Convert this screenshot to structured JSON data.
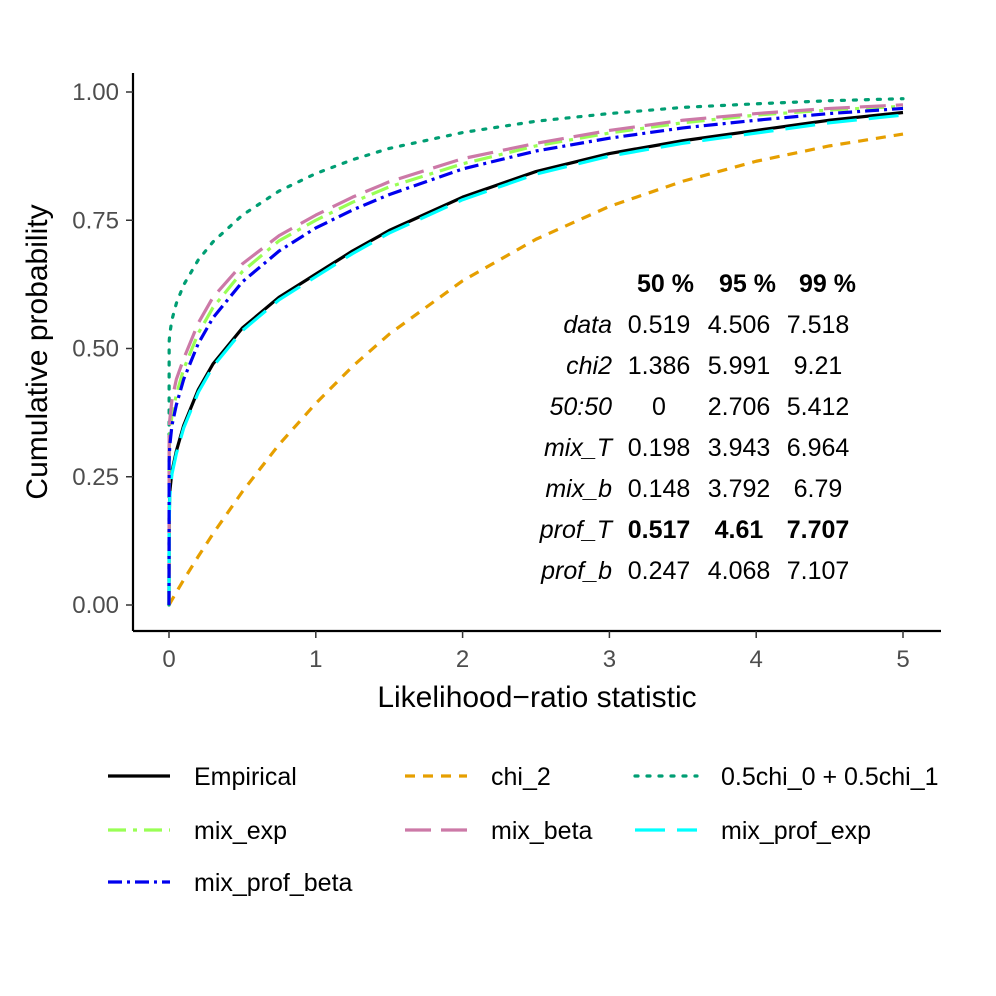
{
  "chart_data": {
    "type": "line",
    "xlabel": "Likelihood−ratio statistic",
    "ylabel": "Cumulative probability",
    "xlim": [
      -0.25,
      5.25
    ],
    "ylim": [
      -0.05,
      1.04
    ],
    "x_ticks": [
      0,
      1,
      2,
      3,
      4,
      5
    ],
    "y_ticks": [
      0.0,
      0.25,
      0.5,
      0.75,
      1.0
    ],
    "x_tick_labels": [
      "0",
      "1",
      "2",
      "3",
      "4",
      "5"
    ],
    "y_tick_labels": [
      "0.00",
      "0.25",
      "0.50",
      "0.75",
      "1.00"
    ],
    "grid": false,
    "legend_position": "bottom",
    "x": [
      0,
      0.001,
      0.005,
      0.02,
      0.05,
      0.1,
      0.2,
      0.3,
      0.5,
      0.75,
      1,
      1.25,
      1.5,
      2,
      2.5,
      3,
      3.5,
      4,
      4.5,
      5
    ],
    "series": [
      {
        "name": "Empirical",
        "color": "#000000",
        "dash": "solid",
        "values": [
          0,
          0.16,
          0.22,
          0.26,
          0.3,
          0.35,
          0.42,
          0.47,
          0.54,
          0.6,
          0.645,
          0.69,
          0.73,
          0.795,
          0.845,
          0.88,
          0.905,
          0.925,
          0.945,
          0.96
        ]
      },
      {
        "name": "chi_2",
        "color": "#E69F00",
        "dash": "short",
        "values": [
          0,
          0.0005,
          0.0025,
          0.01,
          0.025,
          0.049,
          0.095,
          0.139,
          0.221,
          0.313,
          0.393,
          0.465,
          0.528,
          0.632,
          0.713,
          0.777,
          0.826,
          0.865,
          0.895,
          0.918
        ]
      },
      {
        "name": "0.5chi_0 + 0.5chi_1",
        "color": "#009E73",
        "dash": "dot",
        "values": [
          0,
          0.513,
          0.528,
          0.556,
          0.588,
          0.624,
          0.673,
          0.708,
          0.76,
          0.807,
          0.841,
          0.868,
          0.89,
          0.921,
          0.943,
          0.958,
          0.97,
          0.977,
          0.983,
          0.987
        ]
      },
      {
        "name": "mix_exp",
        "color": "#99FF55",
        "dash": "dashdot",
        "values": [
          0,
          0.3,
          0.33,
          0.37,
          0.41,
          0.46,
          0.53,
          0.58,
          0.65,
          0.71,
          0.75,
          0.785,
          0.815,
          0.86,
          0.895,
          0.92,
          0.94,
          0.955,
          0.965,
          0.972
        ]
      },
      {
        "name": "mix_beta",
        "color": "#CC79A7",
        "dash": "long",
        "values": [
          0,
          0.33,
          0.36,
          0.4,
          0.44,
          0.48,
          0.55,
          0.6,
          0.665,
          0.72,
          0.76,
          0.795,
          0.825,
          0.87,
          0.9,
          0.925,
          0.945,
          0.958,
          0.968,
          0.975
        ]
      },
      {
        "name": "mix_prof_exp",
        "color": "#00FFFF",
        "dash": "longer",
        "values": [
          0,
          0.15,
          0.21,
          0.255,
          0.295,
          0.345,
          0.415,
          0.465,
          0.535,
          0.595,
          0.64,
          0.685,
          0.725,
          0.79,
          0.84,
          0.875,
          0.9,
          0.92,
          0.94,
          0.955
        ]
      },
      {
        "name": "mix_prof_beta",
        "color": "#0000EE",
        "dash": "dashdot2",
        "values": [
          0,
          0.28,
          0.31,
          0.35,
          0.39,
          0.44,
          0.51,
          0.56,
          0.63,
          0.69,
          0.735,
          0.77,
          0.8,
          0.85,
          0.885,
          0.91,
          0.93,
          0.945,
          0.958,
          0.968
        ]
      }
    ],
    "table": {
      "headers": [
        "50 %",
        "95 %",
        "99 %"
      ],
      "rows": [
        {
          "label": "data",
          "v50": "0.519",
          "v95": "4.506",
          "v99": "7.518",
          "bold": false
        },
        {
          "label": "chi2",
          "v50": "1.386",
          "v95": "5.991",
          "v99": "9.21",
          "bold": false
        },
        {
          "label": "50:50",
          "v50": "0",
          "v95": "2.706",
          "v99": "5.412",
          "bold": false
        },
        {
          "label": "mix_T",
          "v50": "0.198",
          "v95": "3.943",
          "v99": "6.964",
          "bold": false
        },
        {
          "label": "mix_b",
          "v50": "0.148",
          "v95": "3.792",
          "v99": "6.79",
          "bold": false
        },
        {
          "label": "prof_T",
          "v50": "0.517",
          "v95": "4.61",
          "v99": "7.707",
          "bold": true
        },
        {
          "label": "prof_b",
          "v50": "0.247",
          "v95": "4.068",
          "v99": "7.107",
          "bold": false
        }
      ]
    },
    "legend": [
      {
        "label": "Empirical",
        "series": "Empirical"
      },
      {
        "label": "chi_2",
        "series": "chi_2"
      },
      {
        "label": "0.5chi_0 + 0.5chi_1",
        "series": "0.5chi_0 + 0.5chi_1"
      },
      {
        "label": "mix_exp",
        "series": "mix_exp"
      },
      {
        "label": "mix_beta",
        "series": "mix_beta"
      },
      {
        "label": "mix_prof_exp",
        "series": "mix_prof_exp"
      },
      {
        "label": "mix_prof_beta",
        "series": "mix_prof_beta"
      }
    ]
  }
}
